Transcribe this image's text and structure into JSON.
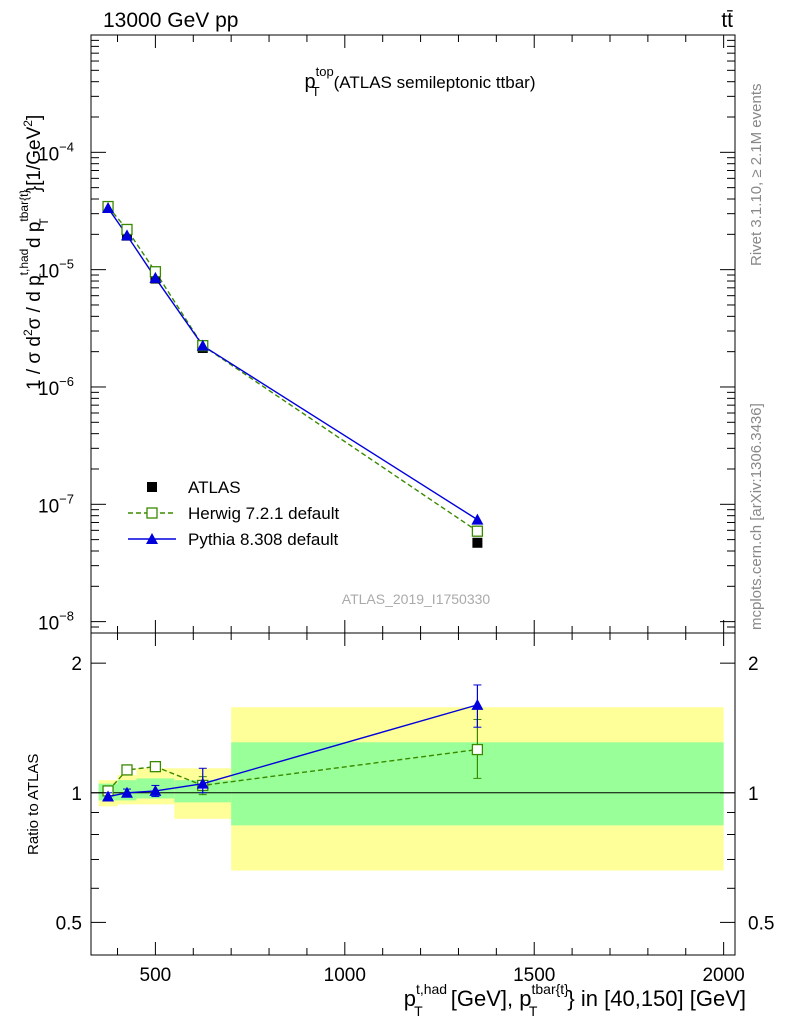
{
  "header": {
    "energy_label": "13000 GeV pp",
    "process_label": "tt̄"
  },
  "side_labels": {
    "rivet": "Rivet 3.1.10, ≥ 2.1M events",
    "mcplots": "mcplots.cern.ch [arXiv:1306.3436]"
  },
  "chart_data": [
    {
      "type": "line",
      "panel": "main",
      "title_main": "p",
      "title_sup": "top",
      "title_sub": "T",
      "title_rest": "(ATLAS semileptonic ttbar)",
      "ylabel": "1 / σ d²σ / d p_T^{t,had} d p_T^{tbar{t}} [1/GeV²]",
      "yscale": "log",
      "ylim": [
        8e-09,
        0.001
      ],
      "xlim": [
        330,
        2030
      ],
      "y_ticks": [
        {
          "value": 1e-08,
          "base": "10",
          "exp": "−8"
        },
        {
          "value": 1e-07,
          "base": "10",
          "exp": "−7"
        },
        {
          "value": 1e-06,
          "base": "10",
          "exp": "−6"
        },
        {
          "value": 1e-05,
          "base": "10",
          "exp": "−5"
        },
        {
          "value": 0.0001,
          "base": "10",
          "exp": "−4"
        }
      ],
      "watermark": "ATLAS_2019_I1750330",
      "legend_position": "lower-left",
      "x": [
        375,
        425,
        500,
        625,
        1350
      ],
      "series": [
        {
          "name": "ATLAS",
          "color": "#000000",
          "marker": "square",
          "values": [
            3.4e-05,
            1.95e-05,
            8.4e-06,
            2.15e-06,
            4.7e-08
          ]
        },
        {
          "name": "Herwig 7.2.1 default",
          "color": "#3a8a00",
          "marker": "open-square",
          "dash": true,
          "values": [
            3.45e-05,
            2.2e-05,
            9.6e-06,
            2.25e-06,
            5.9e-08
          ]
        },
        {
          "name": "Pythia 8.308 default",
          "color": "#0000dd",
          "marker": "triangle",
          "values": [
            3.35e-05,
            1.96e-05,
            8.5e-06,
            2.25e-06,
            7.4e-08
          ]
        }
      ]
    },
    {
      "type": "line",
      "panel": "ratio",
      "ylabel": "Ratio to ATLAS",
      "yscale": "log",
      "ylim": [
        0.42,
        2.35
      ],
      "xlim": [
        330,
        2030
      ],
      "y_ticks": [
        0.5,
        1,
        2
      ],
      "y_tick_labels": [
        "0.5",
        "1",
        "2"
      ],
      "x_ticks": [
        500,
        1000,
        1500,
        2000
      ],
      "x_tick_labels": [
        "500",
        "1000",
        "1500",
        "2000"
      ],
      "xlabel": "p_T^{t,had} [GeV], p_T^{tbar{t}} in [40,150] [GeV]",
      "bins": [
        [
          350,
          400
        ],
        [
          400,
          450
        ],
        [
          450,
          550
        ],
        [
          550,
          700
        ],
        [
          700,
          2000
        ]
      ],
      "band_inner": [
        [
          0.96,
          1.05
        ],
        [
          0.96,
          1.07
        ],
        [
          0.97,
          1.08
        ],
        [
          0.95,
          1.07
        ],
        [
          0.84,
          1.31
        ]
      ],
      "band_outer": [
        [
          0.93,
          1.07
        ],
        [
          0.94,
          1.1
        ],
        [
          0.94,
          1.14
        ],
        [
          0.87,
          1.14
        ],
        [
          0.66,
          1.58
        ]
      ],
      "x": [
        375,
        425,
        500,
        625,
        1350
      ],
      "series": [
        {
          "name": "Herwig 7.2.1 default",
          "color": "#3a8a00",
          "values": [
            1.01,
            1.13,
            1.15,
            1.04,
            1.26
          ],
          "err_up": [
            0.02,
            0.02,
            0.03,
            0.05,
            0.22
          ],
          "err_down": [
            0.02,
            0.02,
            0.03,
            0.05,
            0.18
          ]
        },
        {
          "name": "Pythia 8.308 default",
          "color": "#0000dd",
          "values": [
            0.98,
            1.0,
            1.01,
            1.05,
            1.6
          ],
          "err_up": [
            0.02,
            0.02,
            0.03,
            0.09,
            0.18
          ],
          "err_down": [
            0.02,
            0.02,
            0.03,
            0.05,
            0.18
          ]
        }
      ]
    }
  ]
}
